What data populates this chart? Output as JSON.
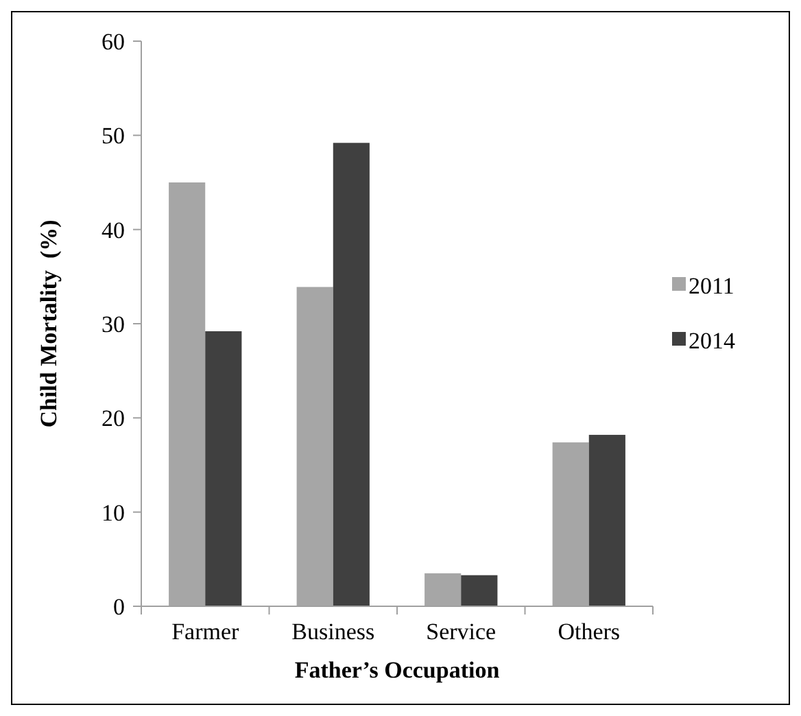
{
  "chart_data": {
    "type": "bar",
    "xlabel": "Father’s Occupation",
    "ylabel": "Child Mortality  (%)",
    "categories": [
      "Farmer",
      "Business",
      "Service",
      "Others"
    ],
    "series": [
      {
        "name": "2011",
        "color": "#a6a6a6",
        "values": [
          45.0,
          33.9,
          3.5,
          17.4
        ]
      },
      {
        "name": "2014",
        "color": "#404040",
        "values": [
          29.2,
          49.2,
          3.3,
          18.2
        ]
      }
    ],
    "ylim": [
      0,
      60
    ],
    "yticks": [
      0,
      10,
      20,
      30,
      40,
      50,
      60
    ],
    "grid": false,
    "legend": "right"
  }
}
